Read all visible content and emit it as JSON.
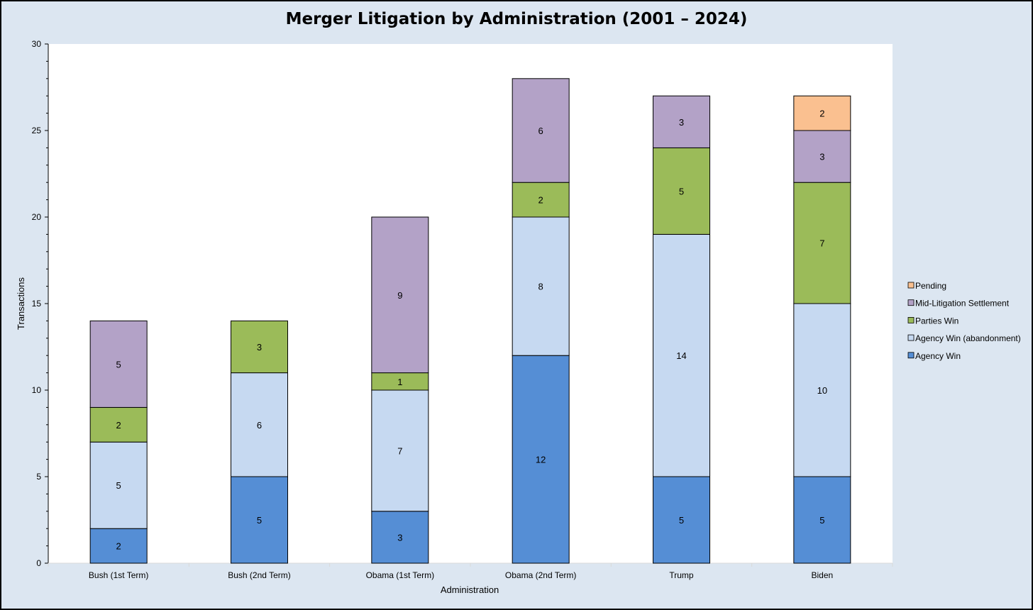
{
  "chart_data": {
    "type": "bar",
    "stacked": true,
    "title": "Merger Litigation by Administration (2001 – 2024)",
    "xlabel": "Administration",
    "ylabel": "Transactions",
    "ylim": [
      0,
      30
    ],
    "yticks": [
      0,
      5,
      10,
      15,
      20,
      25,
      30
    ],
    "yticks_labels": [
      "0",
      "5",
      "10",
      "15",
      "20",
      "25",
      "30"
    ],
    "grid": false,
    "legend_position": "right",
    "categories": [
      "Bush (1st Term)",
      "Bush (2nd Term)",
      "Obama (1st Term)",
      "Obama (2nd Term)",
      "Trump",
      "Biden"
    ],
    "series": [
      {
        "name": "Agency Win",
        "color": "#558ed5",
        "values": [
          2,
          5,
          3,
          12,
          5,
          5
        ],
        "labels": [
          "2",
          "5",
          "3",
          "12",
          "5",
          "5"
        ]
      },
      {
        "name": "Agency Win (abandonment)",
        "color": "#c6d9f1",
        "values": [
          5,
          6,
          7,
          8,
          14,
          10
        ],
        "labels": [
          "5",
          "6",
          "7",
          "8",
          "14",
          "10"
        ]
      },
      {
        "name": "Parties Win",
        "color": "#9bbb59",
        "values": [
          2,
          3,
          1,
          2,
          5,
          7
        ],
        "labels": [
          "2",
          "3",
          "1",
          "2",
          "5",
          "7"
        ]
      },
      {
        "name": "Mid-Litigation Settlement",
        "color": "#b3a2c7",
        "values": [
          5,
          0,
          9,
          6,
          3,
          3
        ],
        "labels": [
          "5",
          "",
          "9",
          "6",
          "3",
          "3"
        ]
      },
      {
        "name": "Pending",
        "color": "#fac090",
        "values": [
          0,
          0,
          0,
          0,
          0,
          2
        ],
        "labels": [
          "",
          "",
          "",
          "",
          "",
          "2"
        ]
      }
    ],
    "legend_order": [
      "Pending",
      "Mid-Litigation Settlement",
      "Parties Win",
      "Agency Win (abandonment)",
      "Agency Win"
    ]
  }
}
